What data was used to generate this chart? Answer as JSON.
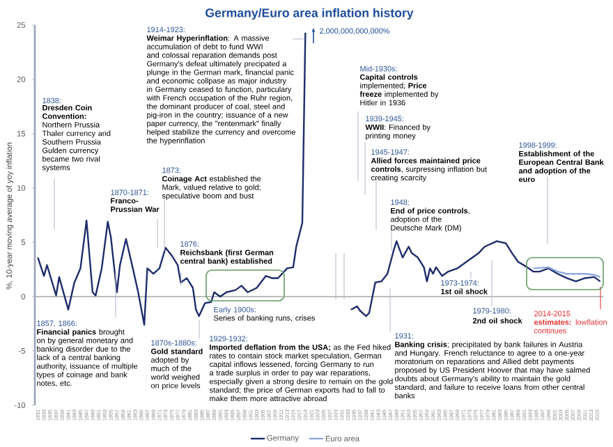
{
  "chart_data": {
    "type": "line",
    "title": "Germany/Euro area inflation history",
    "ylabel": "%, 10-year moving average of yoy inflation",
    "xlim": [
      1830,
      2017
    ],
    "ylim": [
      -10,
      25
    ],
    "yticks": [
      -10,
      -5,
      0,
      5,
      10,
      15,
      20,
      25
    ],
    "xticks": [
      1831,
      1833,
      1835,
      1837,
      1839,
      1841,
      1843,
      1845,
      1847,
      1849,
      1851,
      1853,
      1855,
      1857,
      1859,
      1861,
      1863,
      1865,
      1867,
      1869,
      1871,
      1873,
      1875,
      1877,
      1879,
      1881,
      1883,
      1885,
      1887,
      1889,
      1891,
      1893,
      1895,
      1897,
      1899,
      1901,
      1903,
      1905,
      1907,
      1909,
      1911,
      1913,
      1915,
      1917,
      1919,
      1921,
      1923,
      1925,
      1927,
      1929,
      1931,
      1933,
      1935,
      1937,
      1939,
      1941,
      1943,
      1945,
      1947,
      1949,
      1951,
      1953,
      1955,
      1957,
      1959,
      1961,
      1963,
      1965,
      1967,
      1969,
      1971,
      1973,
      1975,
      1977,
      1979,
      1981,
      1983,
      1985,
      1987,
      1989,
      1991,
      1993,
      1995,
      1997,
      1999,
      2001,
      2003,
      2005,
      2007,
      2009,
      2011,
      2013,
      2015
    ],
    "legend": "bottom",
    "line_style": "solid",
    "series": [
      {
        "name": "Germany",
        "color": "#1f2d6b",
        "x": [
          1831,
          1833,
          1834,
          1837,
          1838,
          1841,
          1843,
          1845,
          1847,
          1849,
          1850,
          1852,
          1854,
          1855,
          1857,
          1858,
          1860,
          1862,
          1864,
          1866,
          1867,
          1869,
          1871,
          1873,
          1875,
          1877,
          1878,
          1880,
          1882,
          1883,
          1884,
          1886,
          1888,
          1889,
          1891,
          1893,
          1896,
          1898,
          1900,
          1903,
          1906,
          1908,
          1910,
          1913,
          1915,
          1916,
          1918,
          1919,
          1925,
          1934,
          1936,
          1937,
          1939,
          1940,
          1942,
          1944,
          1946,
          1948,
          1949,
          1951,
          1953,
          1954,
          1956,
          1958,
          1959,
          1960,
          1961,
          1962,
          1964,
          1966,
          1969,
          1972,
          1976,
          1978,
          1982,
          1985,
          1987,
          1989,
          1992,
          1994,
          1996,
          1999,
          2002,
          2005,
          2008,
          2011,
          2014,
          2016
        ],
        "values": [
          3.6,
          1.9,
          2.9,
          0.1,
          1.8,
          -1.2,
          1.3,
          2.6,
          7.0,
          0.4,
          0.1,
          2.6,
          6.9,
          5.5,
          0.4,
          2.9,
          5.3,
          2.9,
          0.4,
          -2.6,
          2.6,
          2.1,
          2.6,
          4.5,
          3.8,
          2.9,
          1.3,
          1.7,
          0.8,
          -1.2,
          -1.8,
          -0.6,
          -0.5,
          0.4,
          0,
          0.4,
          0.6,
          1.0,
          0.4,
          0.8,
          1.9,
          1.7,
          1.7,
          2.6,
          2.7,
          4.6,
          6.8,
          24.3,
          null,
          -1.2,
          -0.9,
          -1.3,
          -1.8,
          -1.5,
          1.3,
          1.4,
          2.1,
          4.2,
          5.1,
          3.6,
          4.6,
          4.0,
          3.6,
          2.7,
          1.4,
          2.6,
          2.1,
          2.7,
          1.9,
          2.3,
          2.6,
          3.2,
          4.0,
          4.6,
          5.1,
          4.9,
          4.0,
          3.2,
          2.7,
          2.3,
          2.3,
          2.6,
          2.1,
          1.7,
          1.4,
          1.7,
          1.8,
          1.4
        ]
      },
      {
        "name": "Euro area",
        "color": "#8ea9db",
        "x": [
          1994,
          1999,
          2002,
          2005,
          2011,
          2014,
          2016
        ],
        "values": [
          2.6,
          2.7,
          2.3,
          2.1,
          2.1,
          2.0,
          1.8
        ]
      }
    ],
    "ref_lines": [
      {
        "axis": "y",
        "value": 0,
        "color": "#a6a6a6"
      }
    ],
    "annotations": [
      "1838:",
      "**Dresden Coin Convention:** Northern Prussia Thaler currency and Southern Prussia Gulden currency became two rival systems",
      "1857, 1866:",
      "**Financial panics** brought on by general monetary and banking disorder due to the lack of a central banking authority, issuance of multiple types of coinage and bank notes, etc.",
      "1870-1871:",
      "**Franco-Prussian War**",
      "1870s-1880s:",
      "**Gold standard** adopted by much of the world weighed on price levels",
      "1873:",
      "**Coinage Act** established the Mark, valued relative to gold; speculative boom and bust",
      "1876:",
      "**Reichsbank (first German central bank) established**",
      "Early 1900s:",
      "Series of banking runs, crises",
      "1914-1923:",
      "**Weimar Hyperinflation**: A massive accumulation of debt to fund WWI and colossal reparation demands post Germany's defeat ultimately precipated a plunge in the German mark, financial panic and economic collpase as major industry in Germany ceased to function, particulary with French occupation of the Ruhr region, the dominant producer of coal, steel and pig-iron in the country; issuance of a new paper currency, the \"rentenmark\" finally helped stabilize the currency and overcome the hyperinflation",
      "1929-1932:",
      "**Imported deflation from the USA;** as the Fed hiked rates to contain stock market speculation, German capital inflows lessened, forcing Germany to run a trade surplus in order to pay war reparations, especially given a strong desire to remain on the gold standard; the price of German exports had to fall to make them more attractive abroad",
      "1931:",
      "**Banking crisis**; precipitated by bank failures in Austria and Hungary. French reluctance to agree to a one-year moratorium on reparations and Allied debt payments proposed by US President Hoover that may have salmed doubts about Germany's ability to maintain the gold standard, and failure to receive loans from other central banks",
      "Mid-1930s:",
      "**Capital controls** implemented; **Price freeze** implemented by Hitler in 1936",
      "1939-1945:",
      "**WWII**: Financed by printing money",
      "1945-1947:",
      "**Allied forces maintained price controls**, surpressing inflation but creating scarcity",
      "1948:",
      "**End of price controls**, adoption of the Deutsche Mark (DM)",
      "1973-1974:",
      "**1st oil shock**",
      "1979-1980:",
      "**2nd oil shock**",
      "1998-1999:",
      "**Establishment of the European Central Bank and adoption of the euro**",
      "2014-2015",
      "**estimates:** lowflation continues",
      "2,000,000,000,000%"
    ]
  }
}
